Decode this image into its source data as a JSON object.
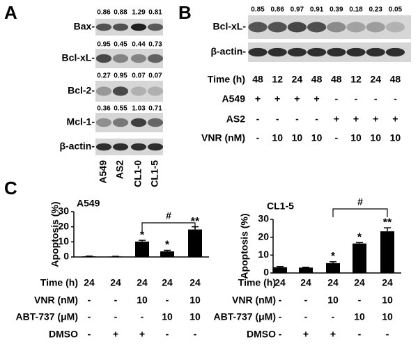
{
  "panel_a": {
    "label": "A",
    "lanes": [
      "A549",
      "AS2",
      "CL1-0",
      "CL1-5"
    ],
    "rows": [
      {
        "name": "Bax-",
        "values": [
          0.86,
          0.88,
          1.29,
          0.81
        ]
      },
      {
        "name": "Bcl-xL-",
        "values": [
          0.95,
          0.45,
          0.44,
          0.73
        ]
      },
      {
        "name": "Bcl-2-",
        "values": [
          0.27,
          0.95,
          0.07,
          0.07
        ]
      },
      {
        "name": "Mcl-1-",
        "values": [
          0.36,
          0.55,
          1.03,
          0.71
        ]
      },
      {
        "name": "β-actin-"
      }
    ]
  },
  "panel_b": {
    "label": "B",
    "blots": [
      {
        "name": "Bcl-xL-",
        "values": [
          0.85,
          0.86,
          0.97,
          0.91,
          0.39,
          0.18,
          0.23,
          0.05
        ]
      },
      {
        "name": "β-actin-"
      }
    ],
    "table": [
      {
        "label": "Time (h)",
        "cells": [
          48,
          12,
          24,
          48,
          48,
          12,
          24,
          48
        ]
      },
      {
        "label": "A549",
        "cells": [
          "+",
          "+",
          "+",
          "+",
          "-",
          "-",
          "-",
          "-"
        ]
      },
      {
        "label": "AS2",
        "cells": [
          "-",
          "-",
          "-",
          "-",
          "+",
          "+",
          "+",
          "+"
        ]
      },
      {
        "label": "VNR (nM)",
        "cells": [
          "-",
          10,
          10,
          10,
          "-",
          10,
          10,
          10
        ]
      }
    ]
  },
  "panel_c": {
    "label": "C"
  },
  "chart_data": [
    {
      "type": "bar",
      "title": "A549",
      "y_label": "Apoptosis (%)",
      "color": "#000000",
      "values": [
        0.4,
        0.3,
        10.2,
        3.7,
        18.2
      ],
      "errors": [
        0.2,
        0.1,
        0.8,
        0.7,
        1.8
      ],
      "annotations": [
        null,
        null,
        "*",
        "*",
        "**"
      ],
      "bracket_label": "#",
      "ylim": [
        0,
        30
      ],
      "yticks": [
        0,
        10,
        20,
        30
      ],
      "conditions": [
        {
          "label": "Time (h)",
          "cells": [
            24,
            24,
            24,
            24,
            24
          ]
        },
        {
          "label": "VNR (nM)",
          "cells": [
            "-",
            "-",
            10,
            "-",
            10
          ]
        },
        {
          "label": "ABT-737 (μM)",
          "cells": [
            "-",
            "-",
            "-",
            10,
            10
          ]
        },
        {
          "label": "DMSO",
          "cells": [
            "-",
            "+",
            "+",
            "-",
            "-"
          ]
        }
      ]
    },
    {
      "type": "bar",
      "title": "CL1-5",
      "y_label": "Apoptosis (%)",
      "color": "#000000",
      "values": [
        3.2,
        3.0,
        5.5,
        16.5,
        23.3
      ],
      "errors": [
        0.4,
        0.2,
        0.8,
        0.5,
        2.0
      ],
      "annotations": [
        null,
        null,
        "*",
        "*",
        "**"
      ],
      "bracket_label": "#",
      "ylim": [
        0,
        30
      ],
      "yticks": [
        0,
        10,
        20,
        30
      ],
      "conditions": [
        {
          "label": "Time (h)",
          "cells": [
            24,
            24,
            24,
            24,
            24
          ]
        },
        {
          "label": "VNR (nM)",
          "cells": [
            "-",
            "-",
            10,
            "-",
            10
          ]
        },
        {
          "label": "ABT-737 (μM)",
          "cells": [
            "-",
            "-",
            "-",
            10,
            10
          ]
        },
        {
          "label": "DMSO",
          "cells": [
            "-",
            "+",
            "+",
            "-",
            "-"
          ]
        }
      ]
    }
  ]
}
